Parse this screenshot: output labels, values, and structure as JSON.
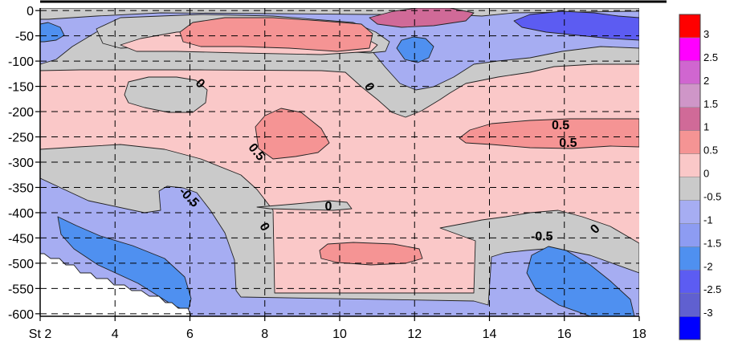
{
  "chart_data": {
    "type": "heatmap",
    "title": "",
    "xlabel": "",
    "ylabel": "",
    "xlim": [
      2,
      18
    ],
    "ylim": [
      -605,
      5
    ],
    "x_ticks": [
      {
        "value": 2,
        "label": "St 2"
      },
      {
        "value": 4,
        "label": "4"
      },
      {
        "value": 6,
        "label": "6"
      },
      {
        "value": 8,
        "label": "8"
      },
      {
        "value": 10,
        "label": "10"
      },
      {
        "value": 12,
        "label": "12"
      },
      {
        "value": 14,
        "label": "14"
      },
      {
        "value": 16,
        "label": "16"
      },
      {
        "value": 18,
        "label": "18"
      }
    ],
    "y_ticks": [
      0,
      -50,
      -100,
      -150,
      -200,
      -250,
      -300,
      -350,
      -400,
      -450,
      -500,
      -550,
      -600
    ],
    "grid": true,
    "legend": "right",
    "colorbar": {
      "min": -3,
      "max": 3.5,
      "levels": [
        {
          "from": -3,
          "to": -2.5,
          "color": "#0000ff"
        },
        {
          "from": -2.5,
          "to": -2,
          "color": "#6060d0"
        },
        {
          "from": -2,
          "to": -1.5,
          "color": "#5c5cf2"
        },
        {
          "from": -1.5,
          "to": -1,
          "color": "#4f90f0"
        },
        {
          "from": -1,
          "to": -0.5,
          "color": "#8d9cf2"
        },
        {
          "from": -0.5,
          "to": 0,
          "color": "#a6adf2"
        },
        {
          "from": 0,
          "to": 0.5,
          "color": "#cacaca"
        },
        {
          "from": 0.5,
          "to": 1,
          "color": "#fac8c8"
        },
        {
          "from": 1,
          "to": 1.5,
          "color": "#f59494"
        },
        {
          "from": 1.5,
          "to": 2,
          "color": "#d06a98"
        },
        {
          "from": 2,
          "to": 2.5,
          "color": "#cf96c8"
        },
        {
          "from": 2.5,
          "to": 3,
          "color": "#d066d0"
        },
        {
          "from": 3,
          "to": 3.5,
          "color": "#ff00ff"
        },
        {
          "from": 3.5,
          "to": 4,
          "color": "#ff0000"
        }
      ],
      "labels": [
        "3",
        "2.5",
        "2",
        "1.5",
        "1",
        "0.5",
        "0",
        "-0.5",
        "-1",
        "-1.5",
        "-2",
        "-2.5",
        "-3"
      ]
    },
    "contour_labels": [
      {
        "text": "0",
        "x": 6.2,
        "y": -150
      },
      {
        "text": "0",
        "x": 10.7,
        "y": -155
      },
      {
        "text": "0.5",
        "x": 7.7,
        "y": -285
      },
      {
        "text": "0.5",
        "x": 15.9,
        "y": -235
      },
      {
        "text": "0.5",
        "x": 16.1,
        "y": -270
      },
      {
        "text": "-0.5",
        "x": 5.9,
        "y": -375
      },
      {
        "text": "0",
        "x": 7.9,
        "y": -432
      },
      {
        "text": "0",
        "x": 9.7,
        "y": -395
      },
      {
        "text": "-0.5",
        "x": 15.4,
        "y": -455
      },
      {
        "text": "0",
        "x": 16.9,
        "y": -438
      }
    ],
    "colors": {
      "background": "#fac8c8",
      "neg_light": "#a6adf2",
      "neg_mid": "#8d9cf2",
      "neg_deep": "#4f90f0",
      "neg_dark": "#5c5cf2",
      "zero": "#cacaca",
      "pos_mid": "#f59494",
      "pos_high": "#d06a98",
      "blank": "#ffffff"
    }
  }
}
